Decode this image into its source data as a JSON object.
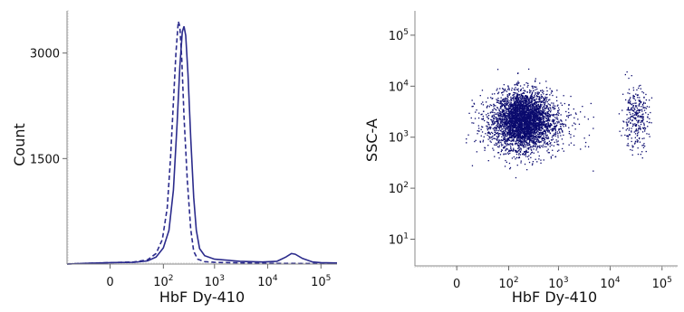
{
  "chart_data": [
    {
      "type": "line",
      "xlabel": "HbF Dy-410",
      "ylabel": "Count",
      "x_scale": "biexponential",
      "x_ticks": [
        {
          "value": 0,
          "base": "0",
          "exp": ""
        },
        {
          "value": 100,
          "base": "10",
          "exp": "2"
        },
        {
          "value": 1000,
          "base": "10",
          "exp": "3"
        },
        {
          "value": 10000,
          "base": "10",
          "exp": "4"
        },
        {
          "value": 100000,
          "base": "10",
          "exp": "5"
        }
      ],
      "y_ticks": [
        1500,
        3000
      ],
      "ylim": [
        0,
        3600
      ],
      "series": [
        {
          "style": "solid",
          "color": "#2b2b8c",
          "points": [
            [
              -60,
              0
            ],
            [
              -20,
              10
            ],
            [
              0,
              20
            ],
            [
              20,
              25
            ],
            [
              45,
              45
            ],
            [
              70,
              100
            ],
            [
              100,
              230
            ],
            [
              130,
              480
            ],
            [
              160,
              1050
            ],
            [
              190,
              2000
            ],
            [
              215,
              2800
            ],
            [
              240,
              3300
            ],
            [
              260,
              3380
            ],
            [
              280,
              3250
            ],
            [
              310,
              2700
            ],
            [
              350,
              1800
            ],
            [
              400,
              950
            ],
            [
              450,
              480
            ],
            [
              520,
              220
            ],
            [
              650,
              120
            ],
            [
              1000,
              70
            ],
            [
              3000,
              40
            ],
            [
              8000,
              30
            ],
            [
              15000,
              40
            ],
            [
              22000,
              100
            ],
            [
              28000,
              150
            ],
            [
              33000,
              140
            ],
            [
              45000,
              80
            ],
            [
              70000,
              30
            ],
            [
              100000,
              20
            ],
            [
              200000,
              15
            ]
          ]
        },
        {
          "style": "dashed",
          "color": "#2b2b8c",
          "points": [
            [
              -60,
              0
            ],
            [
              -20,
              10
            ],
            [
              0,
              20
            ],
            [
              20,
              30
            ],
            [
              45,
              60
            ],
            [
              70,
              150
            ],
            [
              95,
              350
            ],
            [
              120,
              800
            ],
            [
              140,
              1500
            ],
            [
              160,
              2300
            ],
            [
              180,
              3000
            ],
            [
              200,
              3450
            ],
            [
              215,
              3380
            ],
            [
              235,
              2900
            ],
            [
              260,
              2100
            ],
            [
              300,
              1200
            ],
            [
              350,
              500
            ],
            [
              400,
              180
            ],
            [
              480,
              70
            ],
            [
              650,
              35
            ],
            [
              1000,
              25
            ],
            [
              10000,
              10
            ],
            [
              200000,
              5
            ]
          ]
        }
      ]
    },
    {
      "type": "scatter",
      "xlabel": "HbF Dy-410",
      "ylabel": "SSC-A",
      "x_scale": "biexponential",
      "y_scale": "log",
      "color": "#0b0b6e",
      "x_ticks": [
        {
          "value": 0,
          "base": "0",
          "exp": ""
        },
        {
          "value": 100,
          "base": "10",
          "exp": "2"
        },
        {
          "value": 1000,
          "base": "10",
          "exp": "3"
        },
        {
          "value": 10000,
          "base": "10",
          "exp": "4"
        },
        {
          "value": 100000,
          "base": "10",
          "exp": "5"
        }
      ],
      "y_ticks": [
        {
          "value": 10,
          "base": "10",
          "exp": "1"
        },
        {
          "value": 100,
          "base": "10",
          "exp": "2"
        },
        {
          "value": 1000,
          "base": "10",
          "exp": "3"
        },
        {
          "value": 10000,
          "base": "10",
          "exp": "4"
        },
        {
          "value": 100000,
          "base": "10",
          "exp": "5"
        }
      ],
      "populations": [
        {
          "x_center": 200,
          "x_spread": 0.28,
          "y_center": 2200,
          "y_spread": 0.28,
          "count": 3200
        },
        {
          "x_center": 180,
          "x_spread": 0.55,
          "y_center": 1800,
          "y_spread": 0.3,
          "count": 700
        },
        {
          "x_center": 30000,
          "x_spread": 0.13,
          "y_center": 2400,
          "y_spread": 0.3,
          "count": 300
        }
      ]
    }
  ]
}
